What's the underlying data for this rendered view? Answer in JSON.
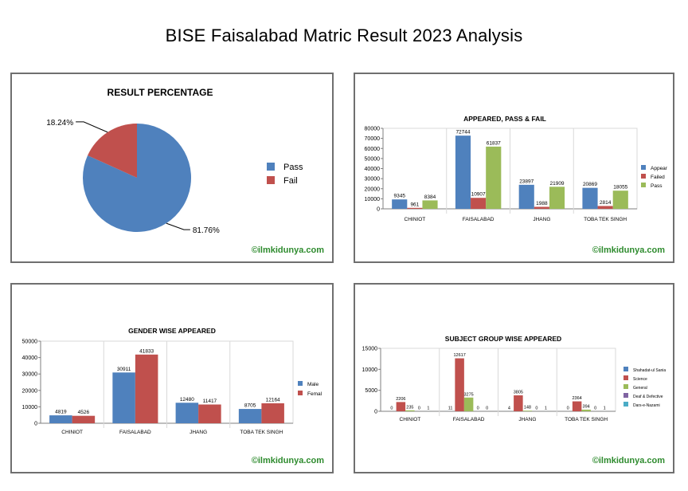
{
  "page": {
    "title": "BISE Faisalabad Matric Result 2023 Analysis",
    "watermark": "©ilmkidunya.com"
  },
  "chart_data": [
    {
      "type": "pie",
      "title": "RESULT PERCENTAGE",
      "slices": [
        {
          "label": "Pass",
          "value": 81.76,
          "display": "81.76%",
          "color": "#4f81bd"
        },
        {
          "label": "Fail",
          "value": 18.24,
          "display": "18.24%",
          "color": "#c0504d"
        }
      ],
      "legend": "right"
    },
    {
      "type": "bar",
      "title": "APPEARED, PASS & FAIL",
      "categories": [
        "CHINIOT",
        "FAISALABAD",
        "JHANG",
        "TOBA TEK SINGH"
      ],
      "series": [
        {
          "name": "Appear",
          "color": "#4f81bd",
          "values": [
            9345,
            72744,
            23897,
            20869
          ]
        },
        {
          "name": "Failed",
          "color": "#c0504d",
          "values": [
            961,
            10907,
            1988,
            2814
          ]
        },
        {
          "name": "Pass",
          "color": "#9bbb59",
          "values": [
            8384,
            61837,
            21909,
            18055
          ]
        }
      ],
      "ylim": [
        0,
        80000
      ],
      "yticks": [
        0,
        10000,
        20000,
        30000,
        40000,
        50000,
        60000,
        70000,
        80000
      ],
      "grid": false,
      "legend": "right"
    },
    {
      "type": "bar",
      "title": "GENDER WISE APPEARED",
      "categories": [
        "CHINIOT",
        "FAISALABAD",
        "JHANG",
        "TOBA TEK SINGH"
      ],
      "series": [
        {
          "name": "Male",
          "color": "#4f81bd",
          "values": [
            4819,
            30911,
            12480,
            8705
          ]
        },
        {
          "name": "Femal",
          "color": "#c0504d",
          "values": [
            4526,
            41833,
            11417,
            12164
          ]
        }
      ],
      "ylim": [
        0,
        50000
      ],
      "yticks": [
        0,
        10000,
        20000,
        30000,
        40000,
        50000
      ],
      "grid": false,
      "legend": "right"
    },
    {
      "type": "bar",
      "title": "SUBJECT GROUP WISE APPEARED",
      "categories": [
        "CHINIOT",
        "FAISALABAD",
        "JHANG",
        "TOBA TEK SINGH"
      ],
      "series": [
        {
          "name": "Shahadat-ul Sania",
          "color": "#4f81bd",
          "values": [
            0,
            11,
            4,
            0
          ]
        },
        {
          "name": "Science",
          "color": "#c0504d",
          "values": [
            2206,
            12617,
            3805,
            2364
          ]
        },
        {
          "name": "General",
          "color": "#9bbb59",
          "values": [
            235,
            3275,
            148,
            394
          ]
        },
        {
          "name": "Deaf & Defective",
          "color": "#8064a2",
          "values": [
            0,
            0,
            0,
            0
          ]
        },
        {
          "name": "Dars-e-Nazami",
          "color": "#4bacc6",
          "values": [
            1,
            0,
            1,
            1
          ]
        }
      ],
      "ylim": [
        0,
        15000
      ],
      "yticks": [
        0,
        5000,
        10000,
        15000
      ],
      "grid": false,
      "legend": "right"
    }
  ]
}
